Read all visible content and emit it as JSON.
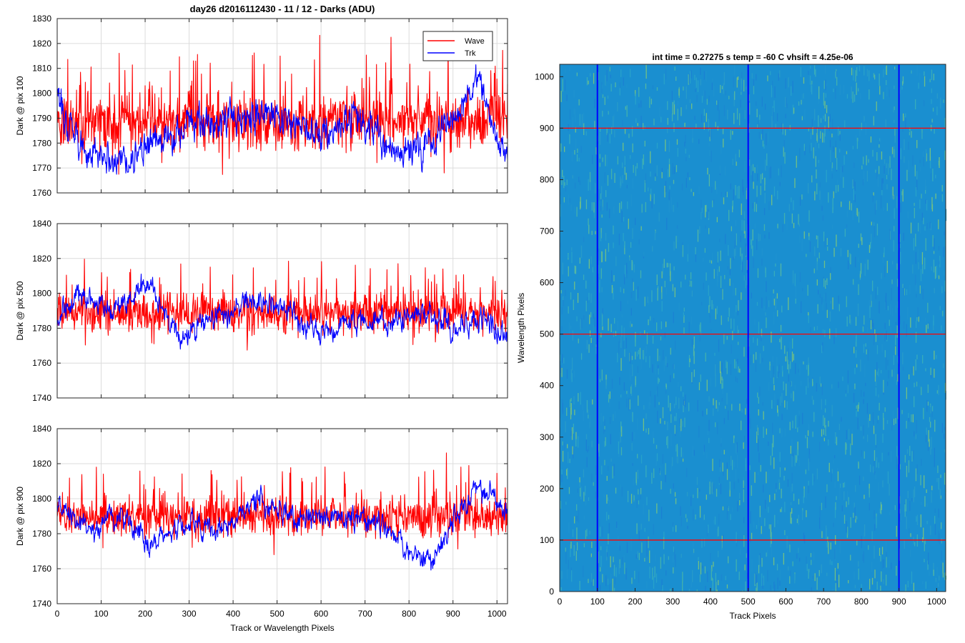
{
  "figure_title": "day26 d2016112430 - 11 / 12 - Darks (ADU)",
  "colors": {
    "wave": "#ff0000",
    "trk": "#0000ff",
    "grid": "#dcdcdc",
    "axis": "#262626",
    "map_base": "#1a8fd0"
  },
  "chart_data": [
    {
      "type": "line",
      "title": "day26 d2016112430 - 11 / 12 - Darks (ADU)",
      "xlabel": "",
      "ylabel": "Dark @ pix 100",
      "xlim": [
        0,
        1024
      ],
      "ylim": [
        1760,
        1830
      ],
      "xticks": [
        0,
        100,
        200,
        300,
        400,
        500,
        600,
        700,
        800,
        900,
        1000
      ],
      "yticks": [
        1760,
        1770,
        1780,
        1790,
        1800,
        1810,
        1820,
        1830
      ],
      "xtick_labels_visible": false,
      "grid": true,
      "legend": "top-right",
      "series": [
        {
          "name": "Wave",
          "color": "#ff0000",
          "mean": 1788,
          "noise": 9,
          "spike_max": 1826,
          "trend": [
            [
              0,
              1789
            ],
            [
              1024,
              1789
            ]
          ]
        },
        {
          "name": "Trk",
          "color": "#0000ff",
          "mean": 1785,
          "trend": [
            [
              0,
              1797
            ],
            [
              60,
              1778
            ],
            [
              150,
              1774
            ],
            [
              230,
              1780
            ],
            [
              300,
              1787
            ],
            [
              380,
              1788
            ],
            [
              440,
              1792
            ],
            [
              520,
              1789
            ],
            [
              600,
              1784
            ],
            [
              680,
              1791
            ],
            [
              740,
              1780
            ],
            [
              800,
              1776
            ],
            [
              860,
              1781
            ],
            [
              920,
              1795
            ],
            [
              960,
              1806
            ],
            [
              1000,
              1783
            ],
            [
              1024,
              1776
            ]
          ]
        }
      ]
    },
    {
      "type": "line",
      "title": "",
      "xlabel": "",
      "ylabel": "Dark @ pix 500",
      "xlim": [
        0,
        1024
      ],
      "ylim": [
        1740,
        1840
      ],
      "xticks": [
        0,
        100,
        200,
        300,
        400,
        500,
        600,
        700,
        800,
        900,
        1000
      ],
      "yticks": [
        1740,
        1760,
        1780,
        1800,
        1820,
        1840
      ],
      "xtick_labels_visible": false,
      "grid": true,
      "series": [
        {
          "name": "Wave",
          "color": "#ff0000",
          "mean": 1789,
          "trend": [
            [
              0,
              1789
            ],
            [
              1024,
              1789
            ]
          ]
        },
        {
          "name": "Trk",
          "color": "#0000ff",
          "mean": 1786,
          "trend": [
            [
              0,
              1783
            ],
            [
              40,
              1800
            ],
            [
              120,
              1790
            ],
            [
              210,
              1805
            ],
            [
              280,
              1773
            ],
            [
              350,
              1785
            ],
            [
              450,
              1797
            ],
            [
              520,
              1790
            ],
            [
              600,
              1778
            ],
            [
              680,
              1784
            ],
            [
              750,
              1783
            ],
            [
              830,
              1790
            ],
            [
              900,
              1781
            ],
            [
              960,
              1786
            ],
            [
              1024,
              1776
            ]
          ]
        }
      ]
    },
    {
      "type": "line",
      "title": "",
      "xlabel": "Track or Wavelength Pixels",
      "ylabel": "Dark @ pix 900",
      "xlim": [
        0,
        1024
      ],
      "ylim": [
        1740,
        1840
      ],
      "xticks": [
        0,
        100,
        200,
        300,
        400,
        500,
        600,
        700,
        800,
        900,
        1000
      ],
      "yticks": [
        1740,
        1760,
        1780,
        1800,
        1820,
        1840
      ],
      "xtick_labels_visible": true,
      "grid": true,
      "series": [
        {
          "name": "Wave",
          "color": "#ff0000",
          "mean": 1790,
          "trend": [
            [
              0,
              1790
            ],
            [
              1024,
              1790
            ]
          ]
        },
        {
          "name": "Trk",
          "color": "#0000ff",
          "mean": 1786,
          "trend": [
            [
              0,
              1795
            ],
            [
              80,
              1782
            ],
            [
              150,
              1791
            ],
            [
              210,
              1774
            ],
            [
              300,
              1786
            ],
            [
              380,
              1783
            ],
            [
              460,
              1799
            ],
            [
              550,
              1788
            ],
            [
              620,
              1791
            ],
            [
              700,
              1787
            ],
            [
              760,
              1782
            ],
            [
              810,
              1768
            ],
            [
              850,
              1764
            ],
            [
              900,
              1789
            ],
            [
              960,
              1806
            ],
            [
              1024,
              1792
            ]
          ]
        }
      ]
    },
    {
      "type": "heatmap",
      "title": "int time = 0.27275 s    temp = -60 C    vhsift = 4.25e-06",
      "xlabel": "Track Pixels",
      "ylabel": "Wavelength Pixels",
      "xlim": [
        0,
        1024
      ],
      "ylim": [
        0,
        1024
      ],
      "xticks": [
        0,
        100,
        200,
        300,
        400,
        500,
        600,
        700,
        800,
        900,
        1000
      ],
      "yticks": [
        0,
        100,
        200,
        300,
        400,
        500,
        600,
        700,
        800,
        900,
        1000
      ],
      "vertical_markers": [
        100,
        500,
        900
      ],
      "horizontal_markers": [
        100,
        500,
        900
      ],
      "vertical_marker_color": "#0000ff",
      "horizontal_marker_color": "#ff0000"
    }
  ]
}
